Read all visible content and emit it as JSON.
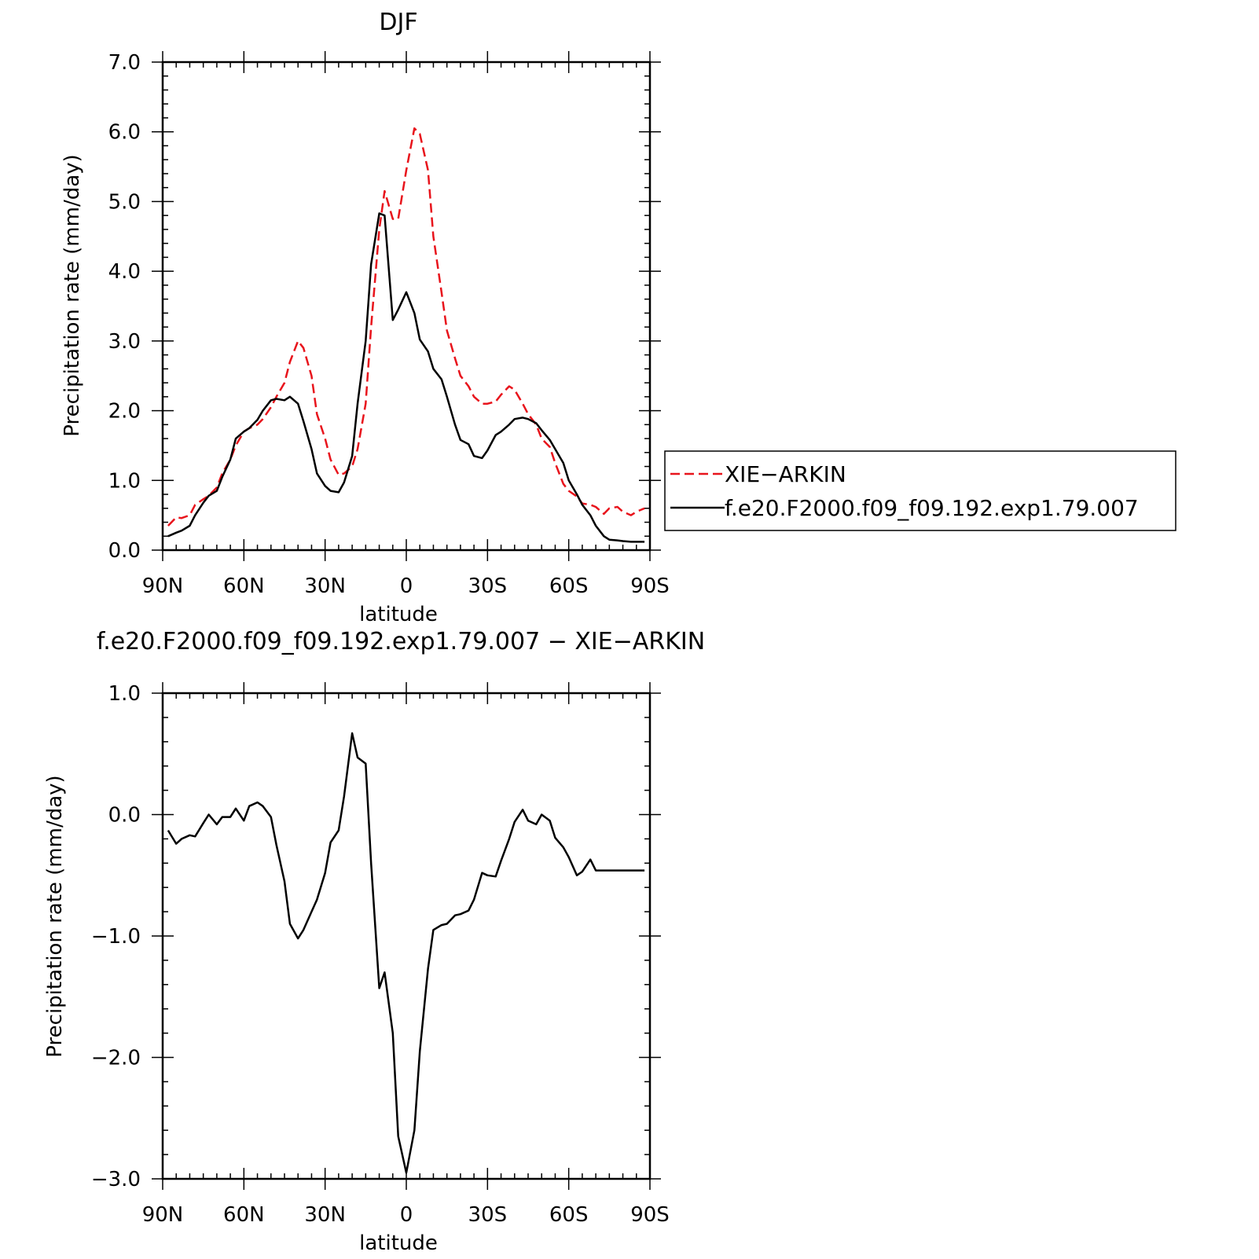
{
  "chart_data": [
    {
      "type": "line",
      "title": "DJF",
      "xlabel": "latitude",
      "ylabel": "Precipitation rate (mm/day)",
      "xlim": [
        -90,
        90
      ],
      "ylim": [
        0,
        7
      ],
      "x_ticks": [
        {
          "value": -90,
          "label": "90N"
        },
        {
          "value": -60,
          "label": "60N"
        },
        {
          "value": -30,
          "label": "30N"
        },
        {
          "value": 0,
          "label": "0"
        },
        {
          "value": 30,
          "label": "30S"
        },
        {
          "value": 60,
          "label": "60S"
        },
        {
          "value": 90,
          "label": "90S"
        }
      ],
      "y_ticks": [
        {
          "value": 0,
          "label": "0.0"
        },
        {
          "value": 1,
          "label": "1.0"
        },
        {
          "value": 2,
          "label": "2.0"
        },
        {
          "value": 3,
          "label": "3.0"
        },
        {
          "value": 4,
          "label": "4.0"
        },
        {
          "value": 5,
          "label": "5.0"
        },
        {
          "value": 6,
          "label": "6.0"
        },
        {
          "value": 7,
          "label": "7.0"
        }
      ],
      "legend": "right",
      "series": [
        {
          "name": "XIE−ARKIN",
          "color": "#e8141c",
          "dash": "dashed",
          "x": [
            -88,
            -85,
            -83,
            -80,
            -78,
            -75,
            -73,
            -70,
            -68,
            -65,
            -63,
            -60,
            -58,
            -55,
            -53,
            -50,
            -48,
            -45,
            -43,
            -40,
            -38,
            -35,
            -33,
            -30,
            -28,
            -25,
            -23,
            -20,
            -18,
            -15,
            -13,
            -10,
            -8,
            -5,
            -3,
            0,
            3,
            5,
            8,
            10,
            13,
            15,
            18,
            20,
            23,
            25,
            28,
            30,
            33,
            35,
            38,
            40,
            43,
            45,
            48,
            50,
            53,
            55,
            58,
            60,
            63,
            65,
            68,
            70,
            73,
            75,
            78,
            80,
            83,
            85,
            88
          ],
          "y": [
            0.35,
            0.47,
            0.46,
            0.5,
            0.65,
            0.73,
            0.78,
            0.9,
            1.1,
            1.3,
            1.5,
            1.7,
            1.75,
            1.8,
            1.88,
            2.05,
            2.2,
            2.4,
            2.7,
            3.0,
            2.9,
            2.5,
            1.95,
            1.6,
            1.3,
            1.08,
            1.1,
            1.2,
            1.45,
            2.1,
            3.2,
            4.6,
            5.15,
            4.75,
            4.75,
            5.45,
            6.05,
            5.97,
            5.45,
            4.5,
            3.7,
            3.15,
            2.75,
            2.5,
            2.35,
            2.2,
            2.1,
            2.1,
            2.13,
            2.23,
            2.35,
            2.3,
            2.1,
            1.95,
            1.8,
            1.6,
            1.48,
            1.25,
            0.95,
            0.85,
            0.77,
            0.67,
            0.65,
            0.62,
            0.52,
            0.6,
            0.62,
            0.55,
            0.5,
            0.55,
            0.6
          ]
        },
        {
          "name": "f.e20.F2000.f09_f09.192.exp1.79.007",
          "color": "#000000",
          "dash": "solid",
          "x": [
            -88,
            -85,
            -83,
            -80,
            -78,
            -75,
            -73,
            -70,
            -68,
            -65,
            -63,
            -60,
            -58,
            -55,
            -53,
            -50,
            -48,
            -45,
            -43,
            -40,
            -38,
            -35,
            -33,
            -30,
            -28,
            -25,
            -23,
            -20,
            -18,
            -15,
            -13,
            -10,
            -8,
            -5,
            -3,
            0,
            3,
            5,
            8,
            10,
            13,
            15,
            18,
            20,
            23,
            25,
            28,
            30,
            33,
            35,
            38,
            40,
            43,
            45,
            48,
            50,
            53,
            55,
            58,
            60,
            63,
            65,
            68,
            70,
            73,
            75,
            78,
            80,
            83,
            85,
            88
          ],
          "y": [
            0.2,
            0.25,
            0.28,
            0.35,
            0.5,
            0.68,
            0.78,
            0.85,
            1.05,
            1.3,
            1.6,
            1.7,
            1.75,
            1.87,
            2.0,
            2.15,
            2.17,
            2.15,
            2.2,
            2.1,
            1.85,
            1.45,
            1.1,
            0.92,
            0.85,
            0.83,
            0.97,
            1.35,
            2.1,
            3.0,
            4.1,
            4.83,
            4.8,
            3.3,
            3.45,
            3.7,
            3.4,
            3.02,
            2.85,
            2.6,
            2.45,
            2.2,
            1.8,
            1.58,
            1.52,
            1.35,
            1.32,
            1.43,
            1.65,
            1.7,
            1.8,
            1.88,
            1.9,
            1.88,
            1.82,
            1.72,
            1.58,
            1.45,
            1.25,
            1.0,
            0.8,
            0.65,
            0.5,
            0.35,
            0.2,
            0.15,
            0.14,
            0.13,
            0.12,
            0.12,
            0.12
          ]
        }
      ]
    },
    {
      "type": "line",
      "title": "f.e20.F2000.f09_f09.192.exp1.79.007 − XIE−ARKIN",
      "xlabel": "latitude",
      "ylabel": "Precipitation rate (mm/day)",
      "xlim": [
        -90,
        90
      ],
      "ylim": [
        -3,
        1
      ],
      "x_ticks": [
        {
          "value": -90,
          "label": "90N"
        },
        {
          "value": -60,
          "label": "60N"
        },
        {
          "value": -30,
          "label": "30N"
        },
        {
          "value": 0,
          "label": "0"
        },
        {
          "value": 30,
          "label": "30S"
        },
        {
          "value": 60,
          "label": "60S"
        },
        {
          "value": 90,
          "label": "90S"
        }
      ],
      "y_ticks": [
        {
          "value": -3,
          "label": "−3.0"
        },
        {
          "value": -2,
          "label": "−2.0"
        },
        {
          "value": -1,
          "label": "−1.0"
        },
        {
          "value": 0,
          "label": "0.0"
        },
        {
          "value": 1,
          "label": "1.0"
        }
      ],
      "series": [
        {
          "color": "#000000",
          "dash": "solid",
          "x": [
            -88,
            -85,
            -83,
            -80,
            -78,
            -75,
            -73,
            -70,
            -68,
            -65,
            -63,
            -60,
            -58,
            -55,
            -53,
            -50,
            -48,
            -45,
            -43,
            -40,
            -38,
            -35,
            -33,
            -30,
            -28,
            -25,
            -23,
            -20,
            -18,
            -15,
            -13,
            -10,
            -8,
            -5,
            -3,
            0,
            3,
            5,
            8,
            10,
            13,
            15,
            18,
            20,
            23,
            25,
            28,
            30,
            33,
            35,
            38,
            40,
            43,
            45,
            48,
            50,
            53,
            55,
            58,
            60,
            63,
            65,
            68,
            70,
            73,
            75,
            78,
            80,
            83,
            85,
            88
          ],
          "y": [
            -0.13,
            -0.24,
            -0.2,
            -0.17,
            -0.18,
            -0.07,
            0.0,
            -0.08,
            -0.02,
            -0.02,
            0.05,
            -0.05,
            0.07,
            0.1,
            0.07,
            -0.02,
            -0.25,
            -0.55,
            -0.9,
            -1.02,
            -0.95,
            -0.8,
            -0.7,
            -0.48,
            -0.23,
            -0.13,
            0.15,
            0.67,
            0.47,
            0.42,
            -0.4,
            -1.43,
            -1.3,
            -1.8,
            -2.65,
            -2.95,
            -2.6,
            -1.95,
            -1.27,
            -0.95,
            -0.91,
            -0.9,
            -0.83,
            -0.82,
            -0.79,
            -0.7,
            -0.48,
            -0.5,
            -0.51,
            -0.38,
            -0.2,
            -0.06,
            0.04,
            -0.05,
            -0.08,
            0.0,
            -0.05,
            -0.19,
            -0.27,
            -0.35,
            -0.5,
            -0.47,
            -0.37,
            -0.46,
            -0.46,
            -0.46,
            -0.46,
            -0.46,
            -0.46,
            -0.46,
            -0.46
          ]
        }
      ]
    }
  ]
}
